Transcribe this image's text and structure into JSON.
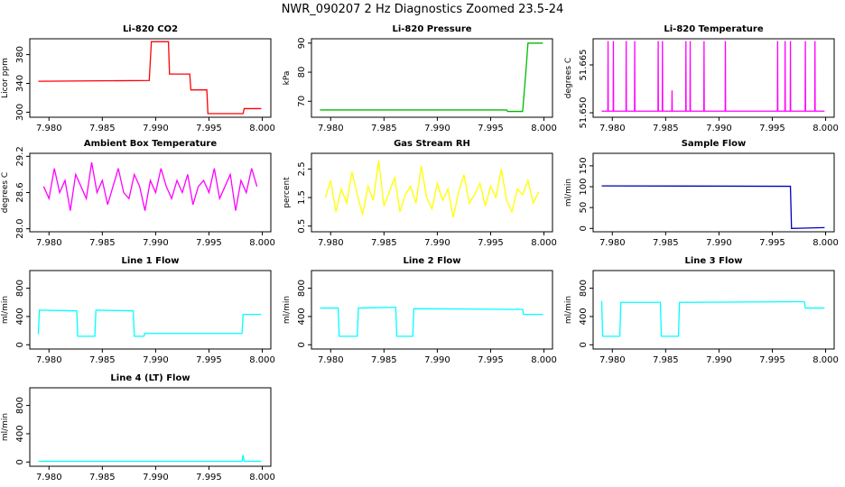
{
  "title": "NWR_090207  2 Hz Diagnostics Zoomed 23.5-24",
  "chart_data": [
    {
      "type": "line",
      "title": "Li-820 CO2",
      "ylabel": "Licor ppm",
      "color": "#ff0000",
      "x": [
        7.979,
        7.9894,
        7.9896,
        7.9912,
        7.9913,
        7.9932,
        7.9933,
        7.9948,
        7.9949,
        7.9982,
        7.9983,
        7.9999
      ],
      "values": [
        343,
        344,
        398,
        398,
        353,
        353,
        331,
        331,
        298,
        298,
        305,
        305
      ],
      "xlim": [
        7.9782,
        8.0008
      ],
      "xticks": [
        {
          "value": 7.98,
          "label": "7.980"
        },
        {
          "value": 7.985,
          "label": "7.985"
        },
        {
          "value": 7.99,
          "label": "7.990"
        },
        {
          "value": 7.995,
          "label": "7.995"
        },
        {
          "value": 8.0,
          "label": "8.000"
        }
      ],
      "ylim": [
        293,
        402
      ],
      "yticks": [
        300,
        340,
        380
      ]
    },
    {
      "type": "line",
      "title": "Li-820 Pressure",
      "ylabel": "kPa",
      "color": "#00bb00",
      "x": [
        7.979,
        7.9965,
        7.9966,
        7.998,
        7.9983,
        7.9985,
        7.9999
      ],
      "values": [
        67,
        67,
        66.5,
        66.5,
        80,
        90,
        90
      ],
      "xlim": [
        7.9782,
        8.0008
      ],
      "xticks": [
        {
          "value": 7.98,
          "label": "7.980"
        },
        {
          "value": 7.985,
          "label": "7.985"
        },
        {
          "value": 7.99,
          "label": "7.990"
        },
        {
          "value": 7.995,
          "label": "7.995"
        },
        {
          "value": 8.0,
          "label": "8.000"
        }
      ],
      "ylim": [
        64.5,
        91.5
      ],
      "yticks": [
        70,
        80,
        90
      ]
    },
    {
      "type": "line",
      "title": "Li-820 Temperature",
      "ylabel": "degrees C",
      "color": "#ff00ff",
      "x": [
        7.979,
        7.97958,
        7.9796,
        7.97962,
        7.98008,
        7.9801,
        7.98012,
        7.98128,
        7.9813,
        7.98132,
        7.98208,
        7.9821,
        7.98212,
        7.98428,
        7.9843,
        7.98432,
        7.98468,
        7.9847,
        7.98472,
        7.98558,
        7.9856,
        7.98562,
        7.98688,
        7.9869,
        7.98692,
        7.98728,
        7.9873,
        7.98732,
        7.98858,
        7.9886,
        7.98862,
        7.99058,
        7.9906,
        7.99062,
        7.99548,
        7.9955,
        7.99552,
        7.99618,
        7.9962,
        7.99622,
        7.99668,
        7.9967,
        7.99672,
        7.99808,
        7.9981,
        7.99812,
        7.99898,
        7.999,
        7.99902,
        7.9999
      ],
      "values": [
        51.6505,
        51.6505,
        51.6725,
        51.6505,
        51.6505,
        51.6725,
        51.6505,
        51.6505,
        51.6725,
        51.6505,
        51.6505,
        51.6725,
        51.6505,
        51.6505,
        51.6725,
        51.6505,
        51.6505,
        51.6725,
        51.6505,
        51.6505,
        51.657,
        51.6505,
        51.6505,
        51.6725,
        51.6505,
        51.6505,
        51.6725,
        51.6505,
        51.6505,
        51.6725,
        51.6505,
        51.6505,
        51.6725,
        51.6505,
        51.6505,
        51.6725,
        51.6505,
        51.6505,
        51.6725,
        51.6505,
        51.6505,
        51.6725,
        51.6505,
        51.6505,
        51.6725,
        51.6505,
        51.6505,
        51.6725,
        51.6505,
        51.6505
      ],
      "xlim": [
        7.9782,
        8.0008
      ],
      "xticks": [
        {
          "value": 7.98,
          "label": "7.980"
        },
        {
          "value": 7.985,
          "label": "7.985"
        },
        {
          "value": 7.99,
          "label": "7.990"
        },
        {
          "value": 7.995,
          "label": "7.995"
        },
        {
          "value": 8.0,
          "label": "8.000"
        }
      ],
      "ylim": [
        51.6486,
        51.6732
      ],
      "yticks": [
        {
          "value": 51.65,
          "label": "51.650"
        },
        {
          "value": 51.665,
          "label": "51.665"
        }
      ]
    },
    {
      "type": "line",
      "title": "Ambient Box Temperature",
      "ylabel": "degrees C",
      "color": "#ff00ff",
      "x": [
        7.9795,
        7.98,
        7.9805,
        7.981,
        7.9815,
        7.982,
        7.9825,
        7.983,
        7.9835,
        7.984,
        7.9845,
        7.985,
        7.9855,
        7.986,
        7.9865,
        7.987,
        7.9875,
        7.988,
        7.9885,
        7.989,
        7.9895,
        7.99,
        7.9905,
        7.991,
        7.9915,
        7.992,
        7.9925,
        7.993,
        7.9935,
        7.994,
        7.9945,
        7.995,
        7.9955,
        7.996,
        7.9965,
        7.997,
        7.9975,
        7.998,
        7.9985,
        7.999,
        7.9995
      ],
      "values": [
        28.7,
        28.5,
        29.0,
        28.6,
        28.8,
        28.3,
        28.9,
        28.7,
        28.5,
        29.1,
        28.6,
        28.8,
        28.4,
        28.7,
        29.0,
        28.6,
        28.5,
        28.9,
        28.7,
        28.3,
        28.8,
        28.6,
        29.0,
        28.7,
        28.5,
        28.8,
        28.6,
        28.9,
        28.4,
        28.7,
        28.8,
        28.6,
        29.0,
        28.5,
        28.7,
        28.9,
        28.3,
        28.8,
        28.6,
        29.0,
        28.7
      ],
      "xlim": [
        7.9782,
        8.0008
      ],
      "xticks": [
        {
          "value": 7.98,
          "label": "7.980"
        },
        {
          "value": 7.985,
          "label": "7.985"
        },
        {
          "value": 7.99,
          "label": "7.990"
        },
        {
          "value": 7.995,
          "label": "7.995"
        },
        {
          "value": 8.0,
          "label": "8.000"
        }
      ],
      "ylim": [
        27.95,
        29.25
      ],
      "yticks": [
        {
          "value": 28,
          "label": "28.0"
        },
        28.6,
        29.2
      ]
    },
    {
      "type": "line",
      "title": "Gas Stream RH",
      "ylabel": "percent",
      "color": "#ffff00",
      "x": [
        7.9795,
        7.98,
        7.9805,
        7.981,
        7.9815,
        7.982,
        7.9825,
        7.983,
        7.9835,
        7.984,
        7.9845,
        7.985,
        7.9855,
        7.986,
        7.9865,
        7.987,
        7.9875,
        7.988,
        7.9885,
        7.989,
        7.9895,
        7.99,
        7.9905,
        7.991,
        7.9915,
        7.992,
        7.9925,
        7.993,
        7.9935,
        7.994,
        7.9945,
        7.995,
        7.9955,
        7.996,
        7.9965,
        7.997,
        7.9975,
        7.998,
        7.9985,
        7.999,
        7.9995
      ],
      "values": [
        1.5,
        2.1,
        1.0,
        1.8,
        1.3,
        2.4,
        1.6,
        0.9,
        1.9,
        1.4,
        2.8,
        1.2,
        1.7,
        2.2,
        1.0,
        1.6,
        1.9,
        1.3,
        2.6,
        1.5,
        1.1,
        2.0,
        1.4,
        1.8,
        0.8,
        1.7,
        2.3,
        1.3,
        1.6,
        2.0,
        1.2,
        1.9,
        1.5,
        2.5,
        1.4,
        1.0,
        1.8,
        1.6,
        2.1,
        1.3,
        1.7
      ],
      "xlim": [
        7.9782,
        8.0008
      ],
      "xticks": [
        {
          "value": 7.98,
          "label": "7.980"
        },
        {
          "value": 7.985,
          "label": "7.985"
        },
        {
          "value": 7.99,
          "label": "7.990"
        },
        {
          "value": 7.995,
          "label": "7.995"
        },
        {
          "value": 8.0,
          "label": "8.000"
        }
      ],
      "ylim": [
        0.3,
        3.05
      ],
      "yticks": [
        0.5,
        1.5,
        2.5
      ]
    },
    {
      "type": "line",
      "title": "Sample Flow",
      "ylabel": "ml/min",
      "color": "#0000bb",
      "x": [
        7.979,
        7.9967,
        7.9968,
        7.9999
      ],
      "values": [
        102,
        101,
        0,
        2
      ],
      "xlim": [
        7.9782,
        8.0008
      ],
      "xticks": [
        {
          "value": 7.98,
          "label": "7.980"
        },
        {
          "value": 7.985,
          "label": "7.985"
        },
        {
          "value": 7.99,
          "label": "7.990"
        },
        {
          "value": 7.995,
          "label": "7.995"
        },
        {
          "value": 8.0,
          "label": "8.000"
        }
      ],
      "ylim": [
        -8,
        180
      ],
      "yticks": [
        0,
        50,
        100,
        150
      ]
    },
    {
      "type": "line",
      "title": "Line 1 Flow",
      "ylabel": "ml/min",
      "color": "#00ffff",
      "x": [
        7.979,
        7.9791,
        7.9826,
        7.9827,
        7.9843,
        7.9844,
        7.9879,
        7.988,
        7.9889,
        7.989,
        7.9981,
        7.9982,
        7.9999
      ],
      "values": [
        150,
        490,
        480,
        120,
        120,
        490,
        480,
        120,
        120,
        160,
        160,
        430,
        430
      ],
      "xlim": [
        7.9782,
        8.0008
      ],
      "xticks": [
        {
          "value": 7.98,
          "label": "7.980"
        },
        {
          "value": 7.985,
          "label": "7.985"
        },
        {
          "value": 7.99,
          "label": "7.990"
        },
        {
          "value": 7.995,
          "label": "7.995"
        },
        {
          "value": 8.0,
          "label": "8.000"
        }
      ],
      "ylim": [
        -60,
        1050
      ],
      "yticks": [
        0,
        400,
        800
      ]
    },
    {
      "type": "line",
      "title": "Line 2 Flow",
      "ylabel": "ml/min",
      "color": "#00ffff",
      "x": [
        7.979,
        7.9807,
        7.9808,
        7.9825,
        7.9826,
        7.9861,
        7.9862,
        7.9877,
        7.9878,
        7.998,
        7.9981,
        7.9999
      ],
      "values": [
        520,
        520,
        120,
        120,
        520,
        530,
        120,
        120,
        510,
        500,
        430,
        430
      ],
      "xlim": [
        7.9782,
        8.0008
      ],
      "xticks": [
        {
          "value": 7.98,
          "label": "7.980"
        },
        {
          "value": 7.985,
          "label": "7.985"
        },
        {
          "value": 7.99,
          "label": "7.990"
        },
        {
          "value": 7.995,
          "label": "7.995"
        },
        {
          "value": 8.0,
          "label": "8.000"
        }
      ],
      "ylim": [
        -60,
        1050
      ],
      "yticks": [
        0,
        400,
        800
      ]
    },
    {
      "type": "line",
      "title": "Line 3 Flow",
      "ylabel": "ml/min",
      "color": "#00ffff",
      "x": [
        7.979,
        7.9791,
        7.9807,
        7.9808,
        7.9845,
        7.9846,
        7.9862,
        7.9863,
        7.998,
        7.9981,
        7.9999
      ],
      "values": [
        620,
        120,
        120,
        600,
        600,
        120,
        120,
        600,
        610,
        520,
        520
      ],
      "xlim": [
        7.9782,
        8.0008
      ],
      "xticks": [
        {
          "value": 7.98,
          "label": "7.980"
        },
        {
          "value": 7.985,
          "label": "7.985"
        },
        {
          "value": 7.99,
          "label": "7.990"
        },
        {
          "value": 7.995,
          "label": "7.995"
        },
        {
          "value": 8.0,
          "label": "8.000"
        }
      ],
      "ylim": [
        -60,
        1050
      ],
      "yticks": [
        0,
        400,
        800
      ]
    },
    {
      "type": "line",
      "title": "Line 4 (LT) Flow",
      "ylabel": "ml/min",
      "color": "#00ffff",
      "x": [
        7.979,
        7.9981,
        7.9982,
        7.9983,
        7.9999
      ],
      "values": [
        10,
        10,
        100,
        10,
        10
      ],
      "xlim": [
        7.9782,
        8.0008
      ],
      "xticks": [
        {
          "value": 7.98,
          "label": "7.980"
        },
        {
          "value": 7.985,
          "label": "7.985"
        },
        {
          "value": 7.99,
          "label": "7.990"
        },
        {
          "value": 7.995,
          "label": "7.995"
        },
        {
          "value": 8.0,
          "label": "8.000"
        }
      ],
      "ylim": [
        -60,
        1050
      ],
      "yticks": [
        0,
        400,
        800
      ]
    }
  ]
}
